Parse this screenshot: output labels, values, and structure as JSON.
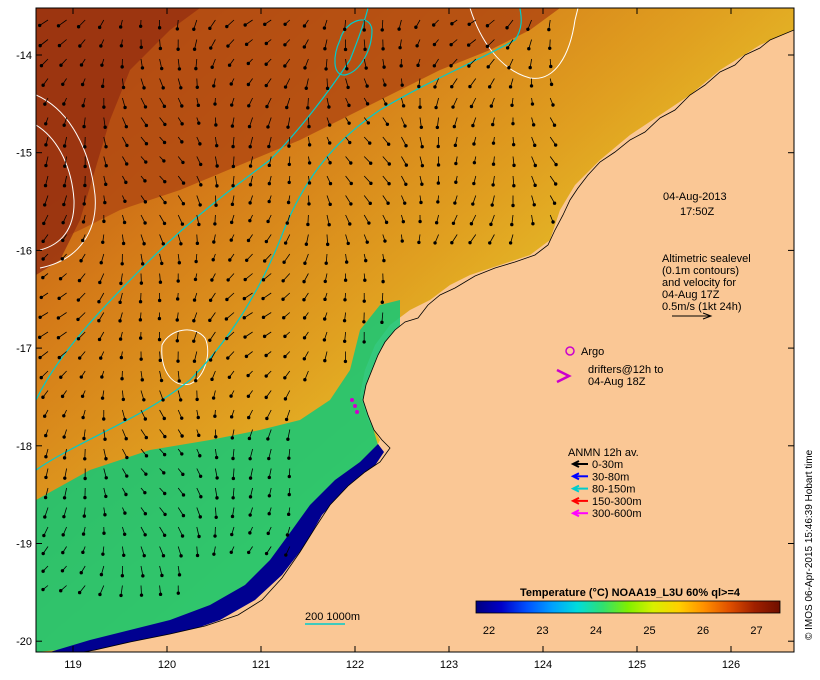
{
  "map": {
    "date": "04-Aug-2013",
    "time": "17:50Z",
    "lon_ticks": [
      "119",
      "120",
      "121",
      "122",
      "123",
      "124",
      "125",
      "126"
    ],
    "lat_ticks": [
      "-14",
      "-15",
      "-16",
      "-17",
      "-18",
      "-19",
      "-20"
    ]
  },
  "altimetry_note": {
    "line1": "Altimetric sealevel",
    "line2": "(0.1m contours)",
    "line3": "and velocity for",
    "line4": "04-Aug 17Z",
    "line5": "0.5m/s (1kt 24h)"
  },
  "argo": {
    "label": "Argo",
    "color": "#cc00cc"
  },
  "drifters": {
    "line1": "drifters@12h to",
    "line2": "04-Aug 18Z",
    "color": "#cc00cc"
  },
  "anmn_legend": {
    "title": "ANMN 12h av.",
    "items": [
      {
        "label": "0-30m",
        "color": "#000000"
      },
      {
        "label": "30-80m",
        "color": "#0000ff"
      },
      {
        "label": "80-150m",
        "color": "#00cccc"
      },
      {
        "label": "150-300m",
        "color": "#ff0000"
      },
      {
        "label": "300-600m",
        "color": "#ff00ff"
      }
    ]
  },
  "isobath_legend": {
    "label": "200  1000m",
    "color": "#00cccc"
  },
  "colorbar": {
    "title": "Temperature (°C) NOAA19_L3U 60% ql>=4",
    "ticks": [
      "22",
      "23",
      "24",
      "25",
      "26",
      "27"
    ],
    "colors": [
      "#00007f",
      "#0000c8",
      "#0050ff",
      "#00a0ff",
      "#00dcdc",
      "#30e070",
      "#80f000",
      "#d8f000",
      "#ffd000",
      "#ff9000",
      "#e05000",
      "#a02000",
      "#6f0f00"
    ]
  },
  "credit": "© IMOS 06-Apr-2015 15:46:39 Hobart time"
}
